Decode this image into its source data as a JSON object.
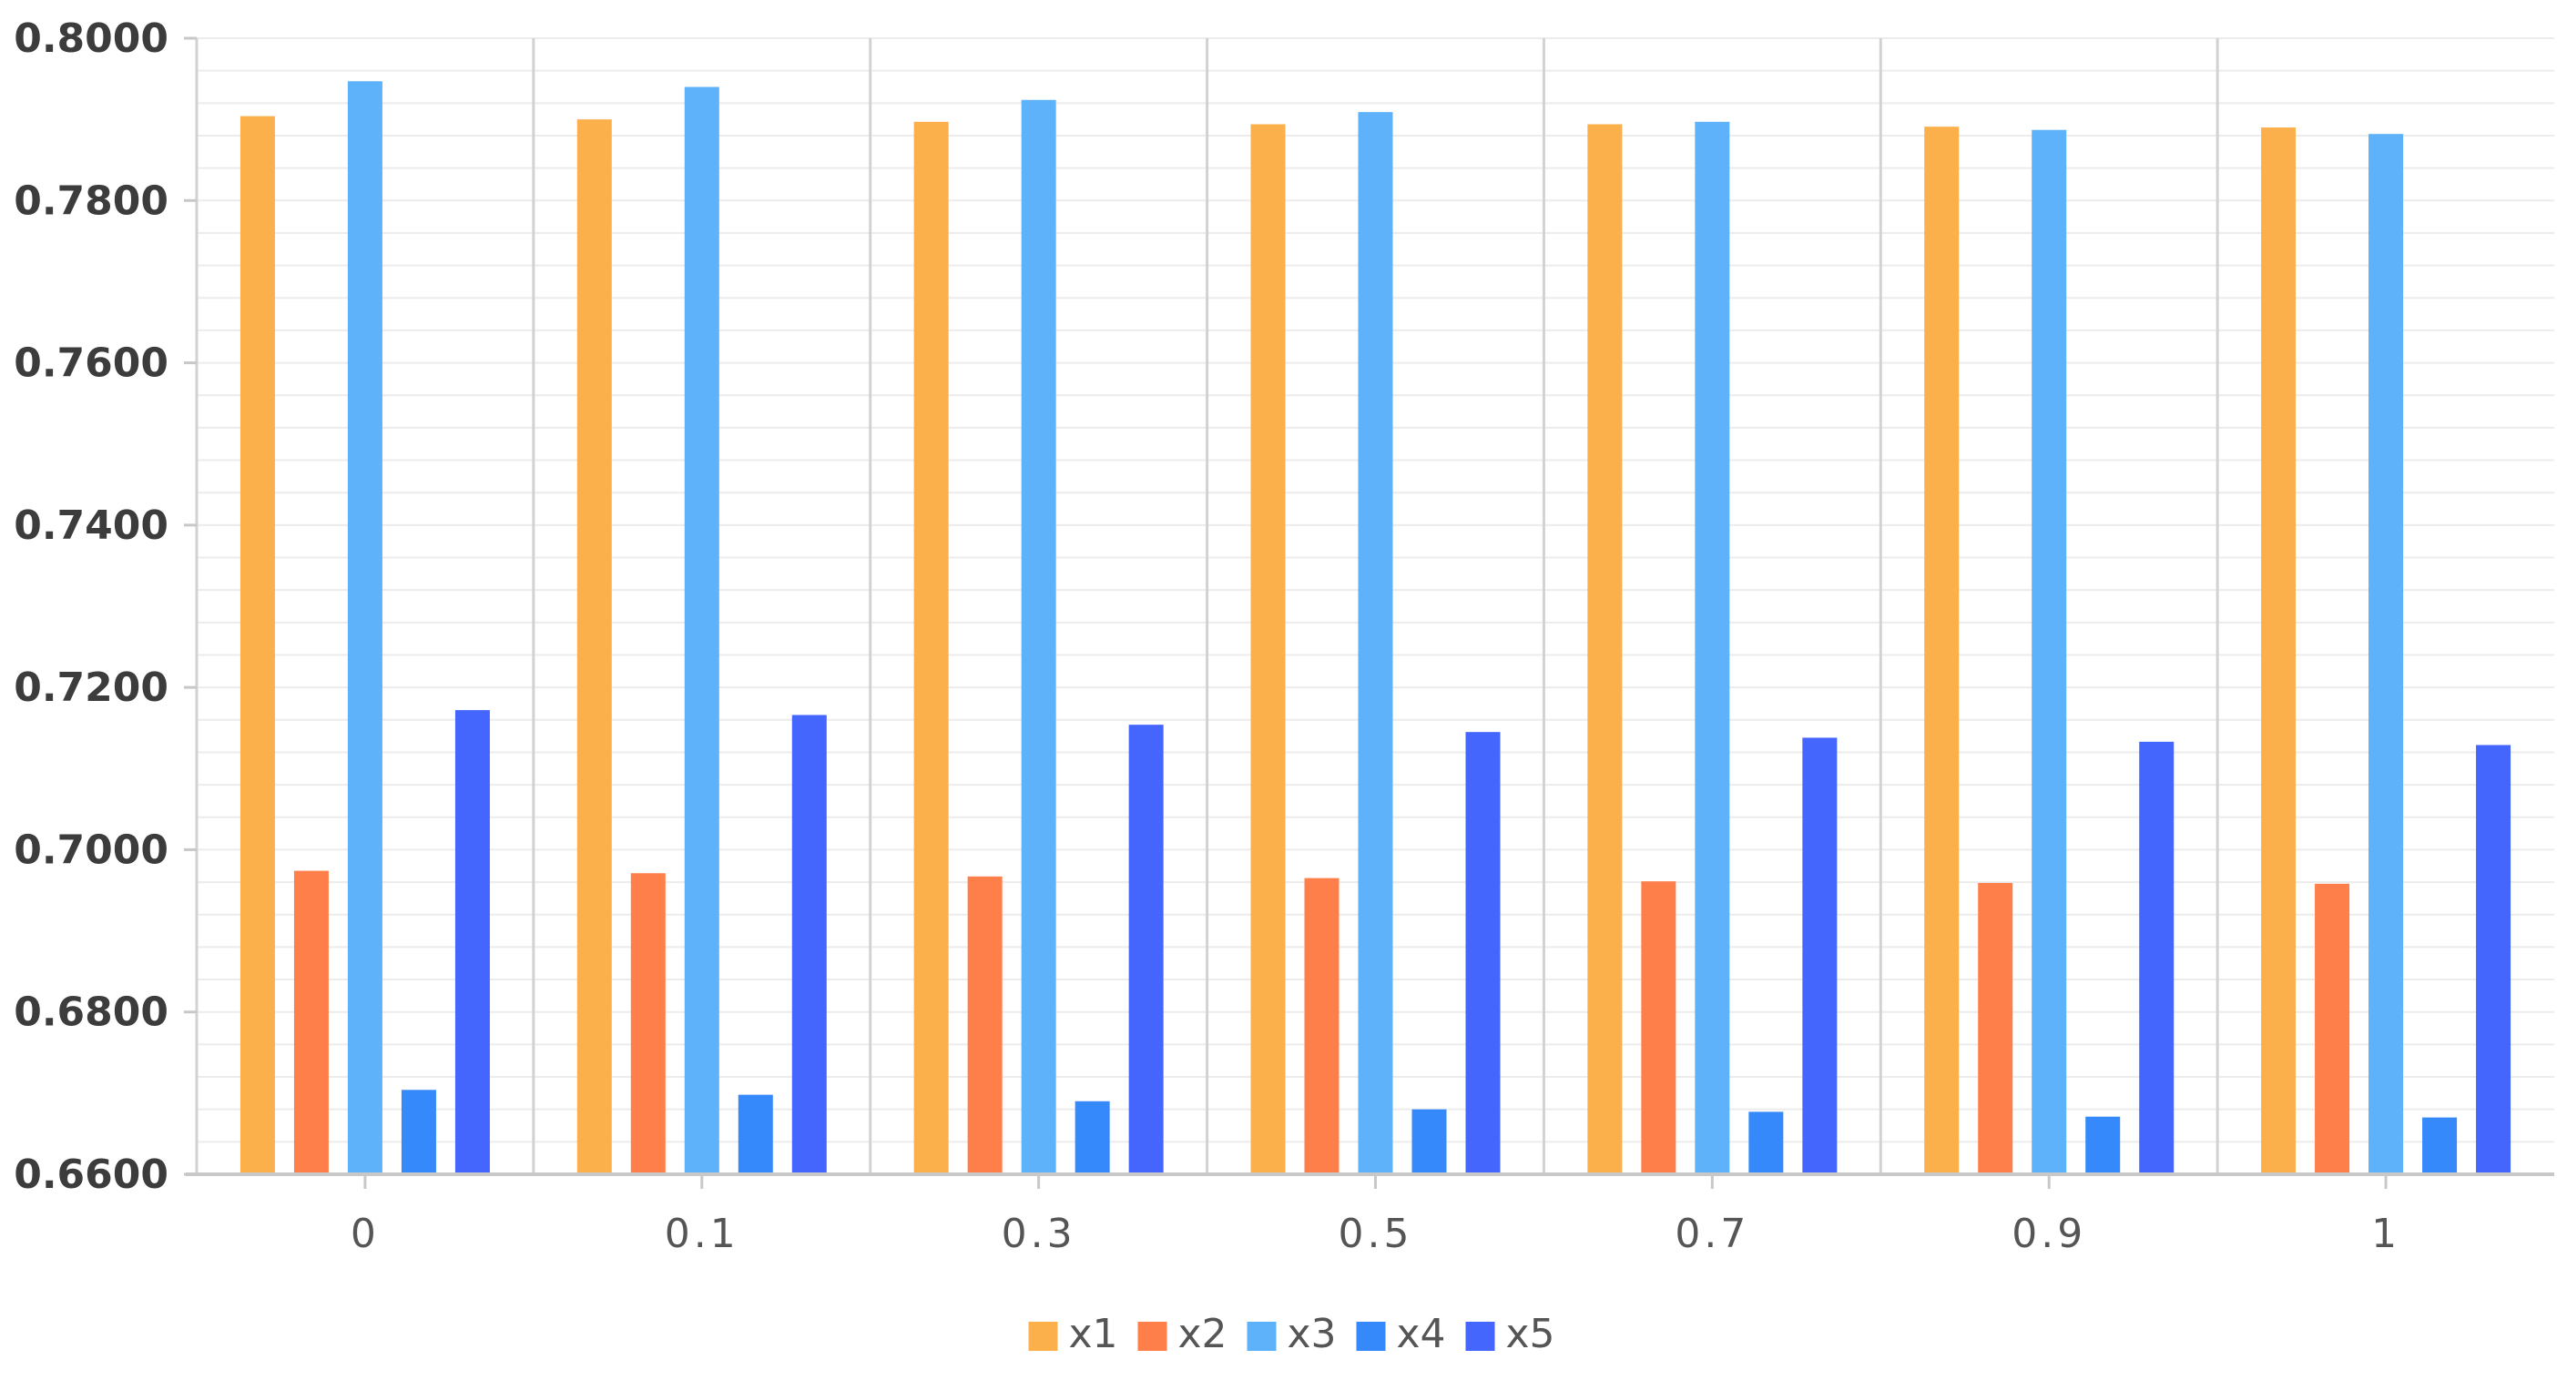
{
  "chart_data": {
    "type": "bar",
    "categories": [
      "0",
      "0.1",
      "0.3",
      "0.5",
      "0.7",
      "0.9",
      "1"
    ],
    "ylim": [
      0.66,
      0.8
    ],
    "yticks": [
      "0.6600",
      "0.6800",
      "0.7000",
      "0.7200",
      "0.7400",
      "0.7600",
      "0.7800",
      "0.8000"
    ],
    "ytick_values": [
      0.66,
      0.68,
      0.7,
      0.72,
      0.74,
      0.76,
      0.78,
      0.8
    ],
    "grid": true,
    "legend_position": "bottom-center",
    "series": [
      {
        "name": "x1",
        "color": "#FBB04B",
        "values": [
          0.7904,
          0.79,
          0.7897,
          0.7894,
          0.7894,
          0.7891,
          0.789
        ]
      },
      {
        "name": "x2",
        "color": "#FF7F4A",
        "values": [
          0.6974,
          0.6971,
          0.6967,
          0.6965,
          0.6961,
          0.6959,
          0.6958
        ]
      },
      {
        "name": "x3",
        "color": "#5DB2F9",
        "values": [
          0.7947,
          0.794,
          0.7924,
          0.7909,
          0.7897,
          0.7887,
          0.7882
        ]
      },
      {
        "name": "x4",
        "color": "#3689FA",
        "values": [
          0.6704,
          0.6698,
          0.669,
          0.668,
          0.6677,
          0.6671,
          0.667
        ]
      },
      {
        "name": "x5",
        "color": "#4466FC",
        "values": [
          0.7172,
          0.7166,
          0.7154,
          0.7145,
          0.7138,
          0.7133,
          0.7129
        ]
      }
    ]
  }
}
